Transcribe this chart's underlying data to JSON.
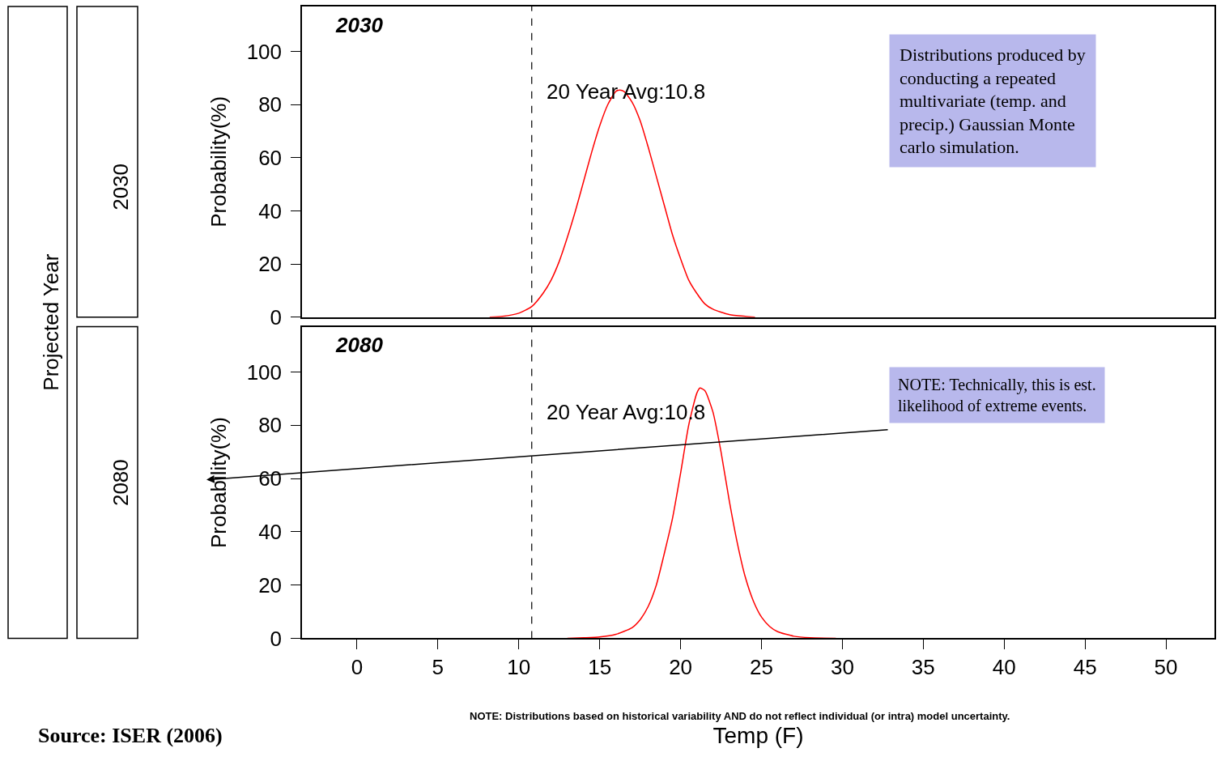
{
  "chart_data": [
    {
      "type": "line",
      "title": "2030",
      "ylabel": "Probability(%)",
      "tick_labels": "y",
      "grid": false,
      "marker": "none",
      "line_style": "solid",
      "x": [
        8.2,
        9,
        10,
        10.8,
        11.5,
        12,
        12.5,
        13,
        13.5,
        14,
        14.5,
        15,
        15.5,
        16,
        16.25,
        16.5,
        17,
        17.5,
        18,
        18.5,
        19,
        19.5,
        20,
        20.5,
        21,
        21.5,
        22,
        23,
        24,
        24.6
      ],
      "series": [
        {
          "color": "#ff0000",
          "values": [
            0,
            0.3,
            1.5,
            4,
            9,
            14,
            21,
            30,
            40,
            51,
            62,
            72,
            80,
            85,
            85.5,
            85,
            81,
            74,
            64,
            53,
            42,
            31,
            22,
            14,
            9,
            5,
            3,
            1,
            0.3,
            0
          ]
        }
      ],
      "xlim": [
        -3.4,
        53
      ],
      "xticks": [
        0,
        5,
        10,
        15,
        20,
        25,
        30,
        35,
        40,
        45,
        50
      ],
      "ylim": [
        0,
        117
      ],
      "yticks": [
        0,
        20,
        40,
        60,
        80,
        100
      ],
      "ref_lines": [
        {
          "axis": "x",
          "value": 10.8,
          "label": "20 Year Avg:10.8",
          "color": "#000000",
          "line_style": "dashed"
        }
      ],
      "annotations": [
        "Projected Year",
        "2030",
        "Distributions produced by conducting a repeated multivariate (temp. and precip.) Gaussian Monte carlo simulation."
      ]
    },
    {
      "type": "line",
      "title": "2080",
      "ylabel": "Probability(%)",
      "xlabel": "Temp (F)",
      "grid": false,
      "marker": "none",
      "line_style": "solid",
      "x": [
        13,
        14,
        15,
        16,
        17,
        17.5,
        18,
        18.5,
        19,
        19.5,
        20,
        20.5,
        21,
        21.2,
        21.5,
        22,
        22.5,
        23,
        23.5,
        24,
        24.5,
        25,
        25.5,
        26,
        27,
        28,
        29.6
      ],
      "series": [
        {
          "color": "#ff0000",
          "values": [
            0,
            0.2,
            0.5,
            1.5,
            4,
            7,
            12,
            20,
            32,
            45,
            62,
            80,
            92,
            94,
            93,
            85,
            70,
            52,
            36,
            23,
            14,
            8,
            4.5,
            2.5,
            0.8,
            0.2,
            0
          ]
        }
      ],
      "xlim": [
        -3.4,
        53
      ],
      "xticks": [
        0,
        5,
        10,
        15,
        20,
        25,
        30,
        35,
        40,
        45,
        50
      ],
      "ylim": [
        0,
        117
      ],
      "yticks": [
        0,
        20,
        40,
        60,
        80,
        100
      ],
      "ref_lines": [
        {
          "axis": "x",
          "value": 10.8,
          "label": "20 Year Avg:10.8",
          "color": "#000000",
          "line_style": "dashed"
        }
      ],
      "annotations": [
        "2080",
        "NOTE: Technically, this is est. likelihood of extreme events.",
        "NOTE: Distributions based on historical variability AND do not reflect individual (or intra) model uncertainty.",
        "Source: ISER (2006)"
      ]
    }
  ]
}
